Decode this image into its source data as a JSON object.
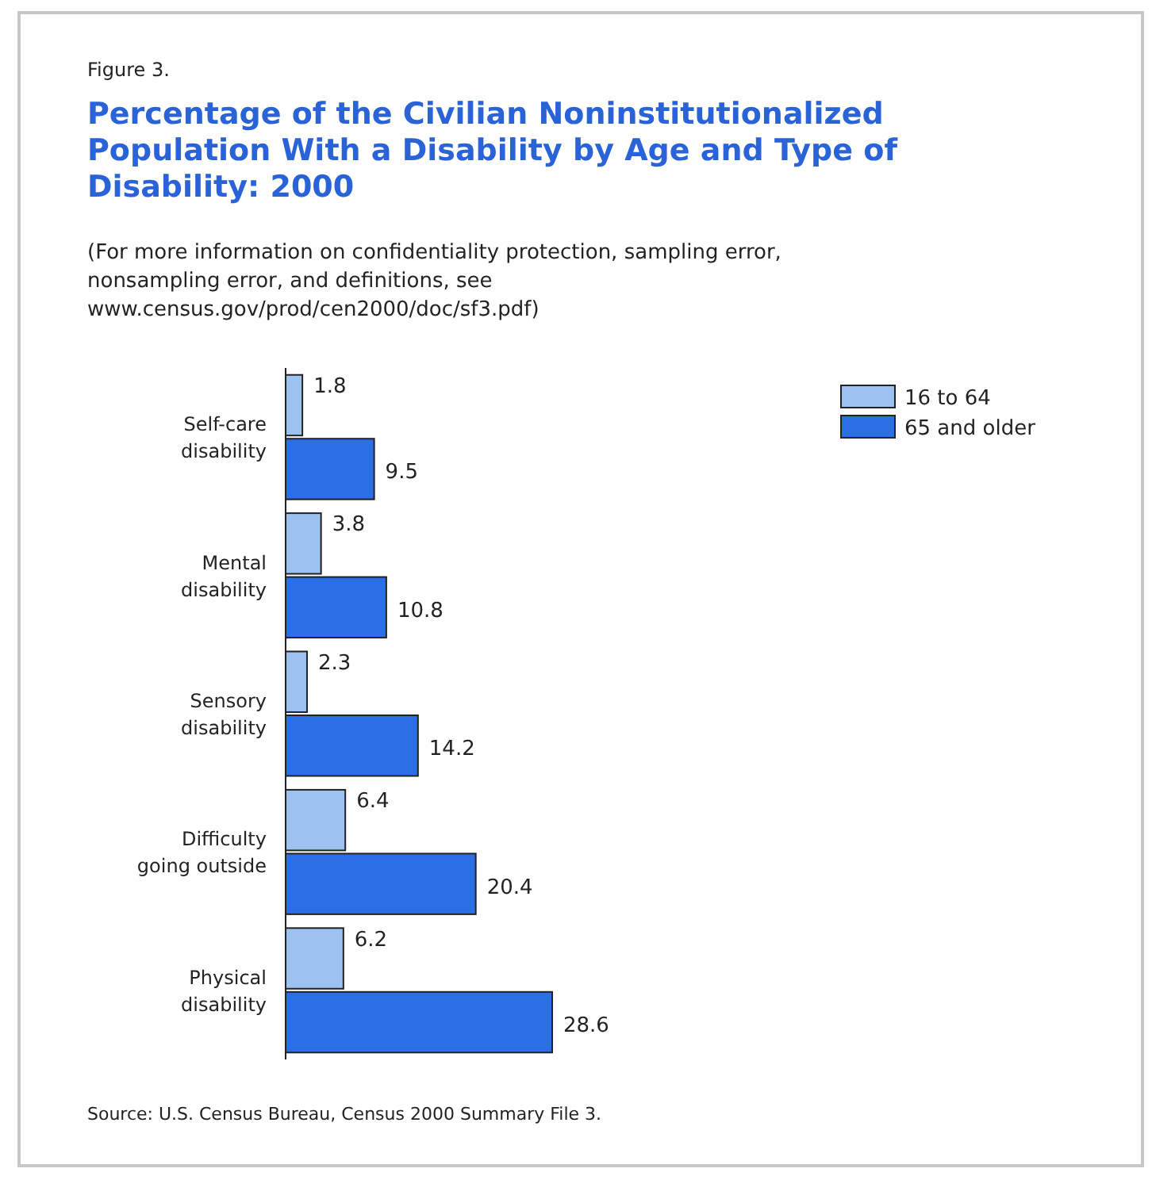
{
  "chart_data": {
    "type": "bar",
    "orientation": "horizontal",
    "title": "Percentage of the Civilian Noninstitutionalized Population With a Disability by Age and Type of Disability: 2000",
    "subtitle": "(For more information on confidentiality protection, sampling error, nonsampling error, and definitions, see www.census.gov/prod/cen2000/doc/sf3.pdf)",
    "annotations": [
      "Figure 3.",
      "Source: U.S. Census Bureau, Census 2000 Summary File 3."
    ],
    "categories": [
      "Self-care disability",
      "Mental disability",
      "Sensory disability",
      "Difficulty going outside",
      "Physical disability"
    ],
    "series": [
      {
        "name": "16 to 64",
        "color": "#9cc2f2",
        "values": [
          1.8,
          3.8,
          2.3,
          6.4,
          6.2
        ]
      },
      {
        "name": "65 and older",
        "color": "#2b6fe6",
        "values": [
          9.5,
          10.8,
          14.2,
          20.4,
          28.6
        ]
      }
    ],
    "relative": false,
    "data_labels": true,
    "legend": "top right"
  }
}
